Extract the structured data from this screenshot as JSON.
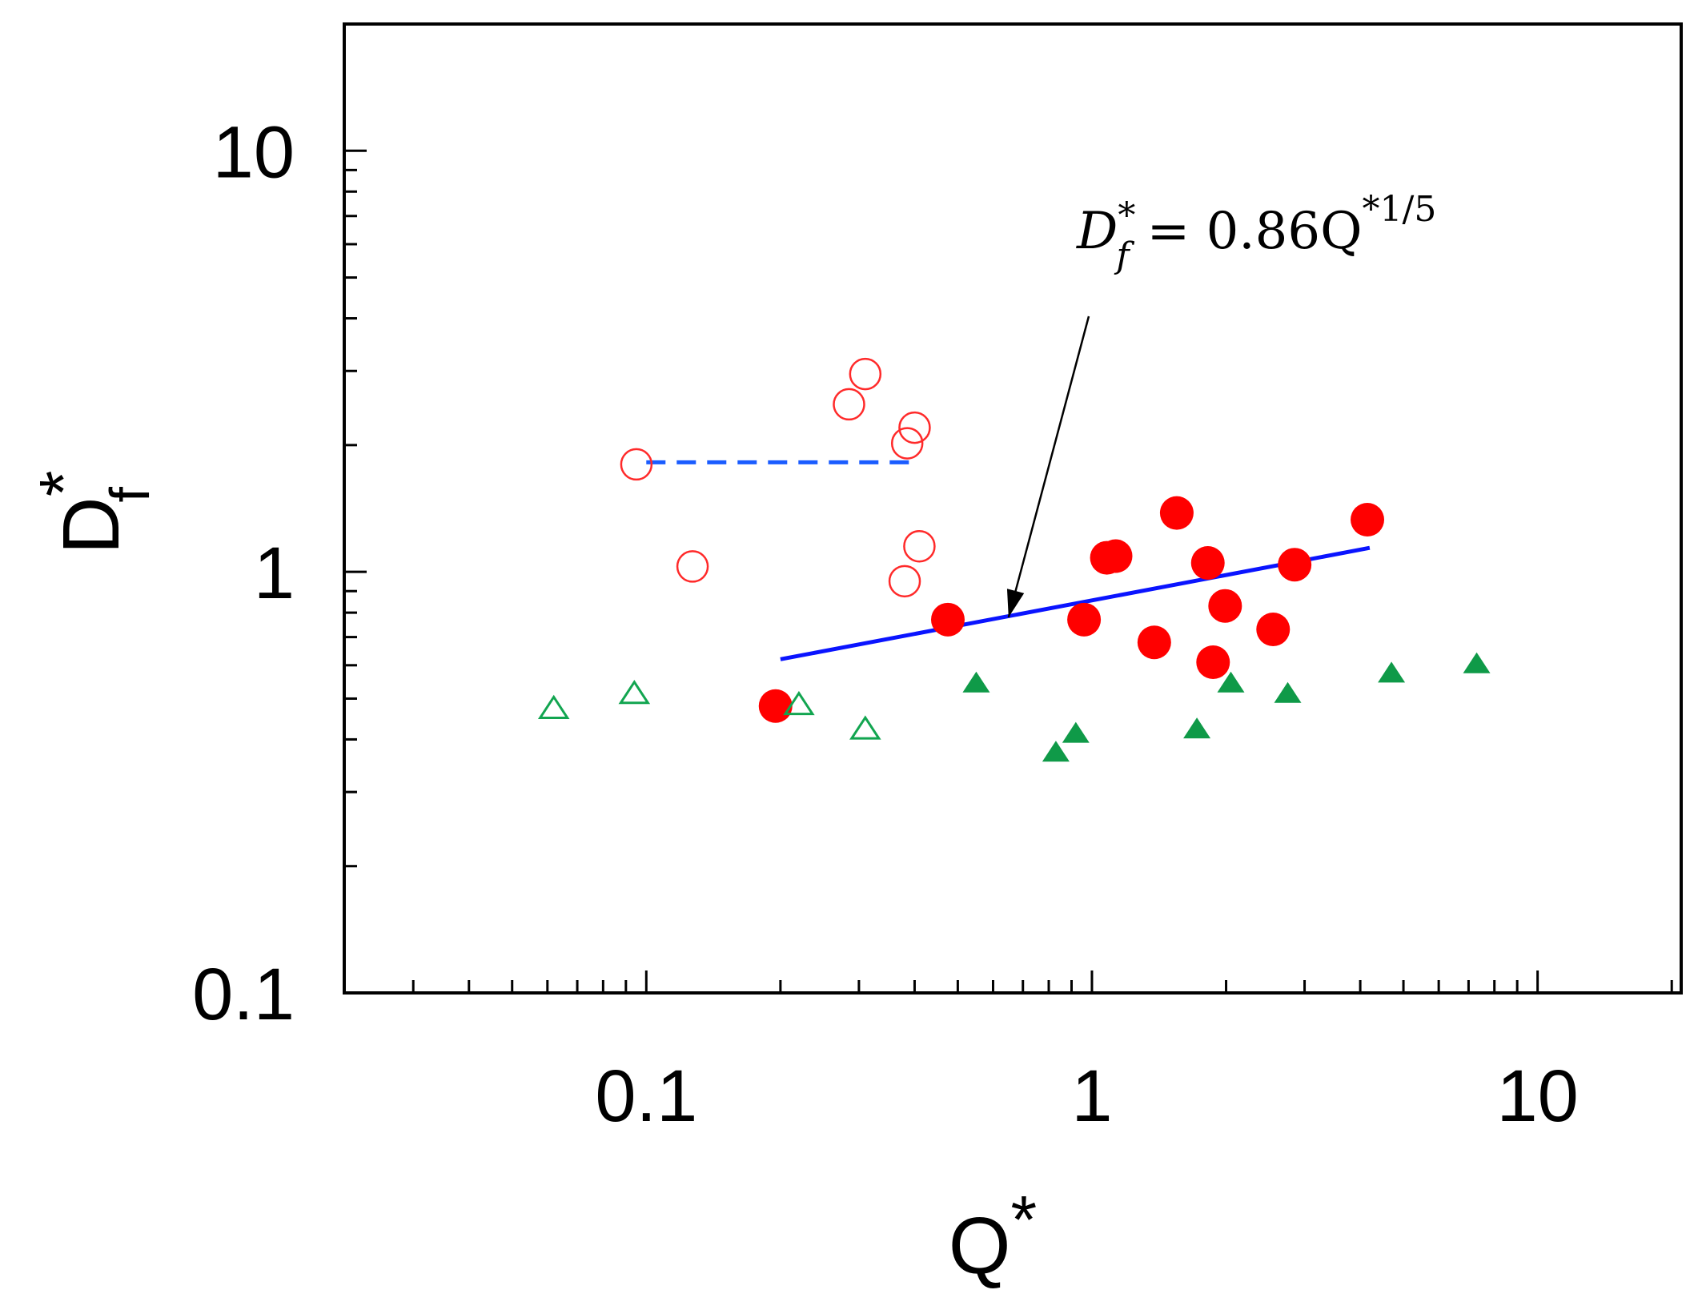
{
  "chart_data": {
    "type": "scatter",
    "title": "",
    "xlabel": "Q",
    "xlabel_sup": "*",
    "ylabel": "D",
    "ylabel_sub": "f",
    "ylabel_sup": "*",
    "x_scale": "log",
    "y_scale": "log",
    "xlim": [
      0.021,
      21
    ],
    "ylim": [
      0.1,
      20
    ],
    "x_ticks": [
      {
        "value": 0.1,
        "label": "0.1"
      },
      {
        "value": 1,
        "label": "1"
      },
      {
        "value": 10,
        "label": "10"
      }
    ],
    "y_ticks": [
      {
        "value": 0.1,
        "label": "0.1"
      },
      {
        "value": 1,
        "label": "1"
      },
      {
        "value": 10,
        "label": "10"
      }
    ],
    "grid": false,
    "series": [
      {
        "name": "open-circles",
        "marker": "circle",
        "filled": false,
        "color": "#ff2a2a",
        "points": [
          [
            0.095,
            1.8
          ],
          [
            0.127,
            1.03
          ],
          [
            0.285,
            2.5
          ],
          [
            0.31,
            2.95
          ],
          [
            0.385,
            2.02
          ],
          [
            0.4,
            2.2
          ],
          [
            0.38,
            0.95
          ],
          [
            0.41,
            1.15
          ]
        ]
      },
      {
        "name": "filled-circles",
        "marker": "circle",
        "filled": true,
        "color": "#ff0000",
        "points": [
          [
            0.195,
            0.48
          ],
          [
            0.475,
            0.77
          ],
          [
            0.96,
            0.77
          ],
          [
            1.08,
            1.08
          ],
          [
            1.13,
            1.09
          ],
          [
            1.38,
            0.68
          ],
          [
            1.55,
            1.38
          ],
          [
            1.82,
            1.05
          ],
          [
            1.87,
            0.61
          ],
          [
            1.99,
            0.83
          ],
          [
            2.55,
            0.73
          ],
          [
            2.85,
            1.04
          ],
          [
            4.15,
            1.33
          ]
        ]
      },
      {
        "name": "open-triangles",
        "marker": "triangle",
        "filled": false,
        "color": "#12a550",
        "points": [
          [
            0.062,
            0.47
          ],
          [
            0.094,
            0.51
          ],
          [
            0.22,
            0.48
          ],
          [
            0.31,
            0.42
          ]
        ]
      },
      {
        "name": "filled-triangles",
        "marker": "triangle",
        "filled": true,
        "color": "#0f9a48",
        "points": [
          [
            0.55,
            0.54
          ],
          [
            0.83,
            0.37
          ],
          [
            0.92,
            0.41
          ],
          [
            1.72,
            0.42
          ],
          [
            2.05,
            0.54
          ],
          [
            2.75,
            0.51
          ],
          [
            4.7,
            0.57
          ],
          [
            7.3,
            0.6
          ]
        ]
      }
    ],
    "lines": [
      {
        "name": "fit-line",
        "style": "solid",
        "color": "#0a14ff",
        "points": [
          [
            0.2,
            0.62
          ],
          [
            4.2,
            1.14
          ]
        ]
      },
      {
        "name": "dashed-line",
        "style": "dashed",
        "color": "#1a5cff",
        "points": [
          [
            0.1,
            1.82
          ],
          [
            0.39,
            1.82
          ]
        ]
      }
    ],
    "annotations": [
      {
        "name": "fit-equation",
        "lhs": "D",
        "lhs_sub": "f",
        "lhs_sup": "*",
        "rhs": "= 0.86Q",
        "rhs_sup": "*1/5",
        "arrow_to": [
          0.65,
          0.78
        ]
      }
    ]
  }
}
